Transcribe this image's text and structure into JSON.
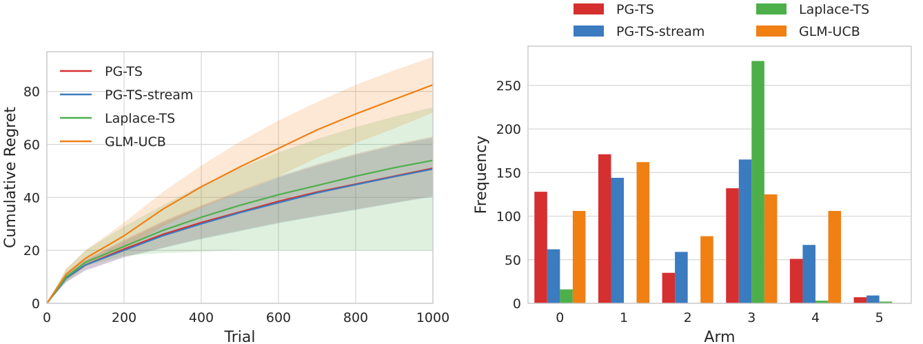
{
  "chart_data": [
    {
      "type": "line",
      "title": "",
      "xlabel": "Trial",
      "ylabel": "Cumulative Regret",
      "xlim": [
        0,
        1000
      ],
      "ylim": [
        0,
        95
      ],
      "xticks": [
        0,
        200,
        400,
        600,
        800,
        1000
      ],
      "yticks": [
        0,
        20,
        40,
        60,
        80
      ],
      "grid": true,
      "legend_position": "top-left",
      "x": [
        0,
        50,
        100,
        200,
        300,
        400,
        500,
        600,
        700,
        800,
        900,
        1000
      ],
      "series": [
        {
          "name": "PG-TS",
          "color": "#d62f2f",
          "values": [
            0,
            9.5,
            14.5,
            20.5,
            26.0,
            30.5,
            34.5,
            38.5,
            42.0,
            45.0,
            48.0,
            51.0
          ],
          "upper": [
            0,
            11.0,
            16.5,
            24.0,
            31.0,
            37.0,
            42.5,
            48.0,
            52.5,
            56.5,
            60.0,
            63.0
          ],
          "lower": [
            0,
            8.0,
            12.5,
            17.5,
            21.0,
            24.5,
            27.5,
            30.5,
            33.0,
            35.5,
            38.0,
            40.5
          ]
        },
        {
          "name": "PG-TS-stream",
          "color": "#3b7bbf",
          "values": [
            0,
            9.5,
            14.5,
            20.0,
            25.5,
            30.0,
            34.2,
            38.0,
            41.7,
            44.8,
            47.8,
            50.7
          ],
          "upper": [
            0,
            11.0,
            16.3,
            23.5,
            30.5,
            36.5,
            42.0,
            47.5,
            52.0,
            56.0,
            59.5,
            62.5
          ],
          "lower": [
            0,
            8.0,
            12.4,
            17.3,
            20.8,
            24.2,
            27.2,
            30.2,
            32.8,
            35.2,
            37.8,
            40.2
          ]
        },
        {
          "name": "Laplace-TS",
          "color": "#4daf4a",
          "values": [
            0,
            10.0,
            15.5,
            21.5,
            27.5,
            32.5,
            37.0,
            41.0,
            44.5,
            48.0,
            51.2,
            54.0
          ],
          "upper": [
            0,
            13.0,
            20.0,
            29.0,
            37.0,
            44.5,
            51.0,
            57.0,
            62.0,
            66.5,
            70.5,
            74.0
          ],
          "lower": [
            0,
            8.0,
            14.0,
            18.0,
            19.0,
            19.5,
            20.0,
            20.0,
            20.0,
            20.0,
            20.0,
            20.0
          ]
        },
        {
          "name": "GLM-UCB",
          "color": "#f07f14",
          "values": [
            0,
            11.0,
            17.0,
            25.5,
            35.5,
            44.0,
            51.5,
            58.5,
            65.5,
            71.5,
            77.0,
            82.5
          ],
          "upper": [
            0,
            13.0,
            20.0,
            30.5,
            42.0,
            52.0,
            61.0,
            69.0,
            76.0,
            82.5,
            88.0,
            93.0
          ],
          "lower": [
            0,
            9.0,
            14.0,
            20.5,
            29.0,
            36.0,
            42.0,
            48.0,
            55.0,
            60.5,
            66.0,
            72.0
          ]
        }
      ]
    },
    {
      "type": "bar",
      "title": "",
      "xlabel": "Arm",
      "ylabel": "Frequency",
      "ylim": [
        0,
        295
      ],
      "yticks": [
        0,
        50,
        100,
        150,
        200,
        250
      ],
      "grid": true,
      "legend_position": "top (above plot, two columns)",
      "categories": [
        "0",
        "1",
        "2",
        "3",
        "4",
        "5"
      ],
      "series": [
        {
          "name": "PG-TS",
          "color": "#d62f2f",
          "values": [
            128,
            171,
            35,
            132,
            51,
            7
          ]
        },
        {
          "name": "PG-TS-stream",
          "color": "#3b7bbf",
          "values": [
            62,
            144,
            59,
            165,
            67,
            9
          ]
        },
        {
          "name": "Laplace-TS",
          "color": "#4daf4a",
          "values": [
            16,
            0,
            0,
            278,
            3,
            2
          ]
        },
        {
          "name": "GLM-UCB",
          "color": "#f07f14",
          "values": [
            106,
            162,
            77,
            125,
            106,
            0
          ]
        }
      ]
    }
  ]
}
